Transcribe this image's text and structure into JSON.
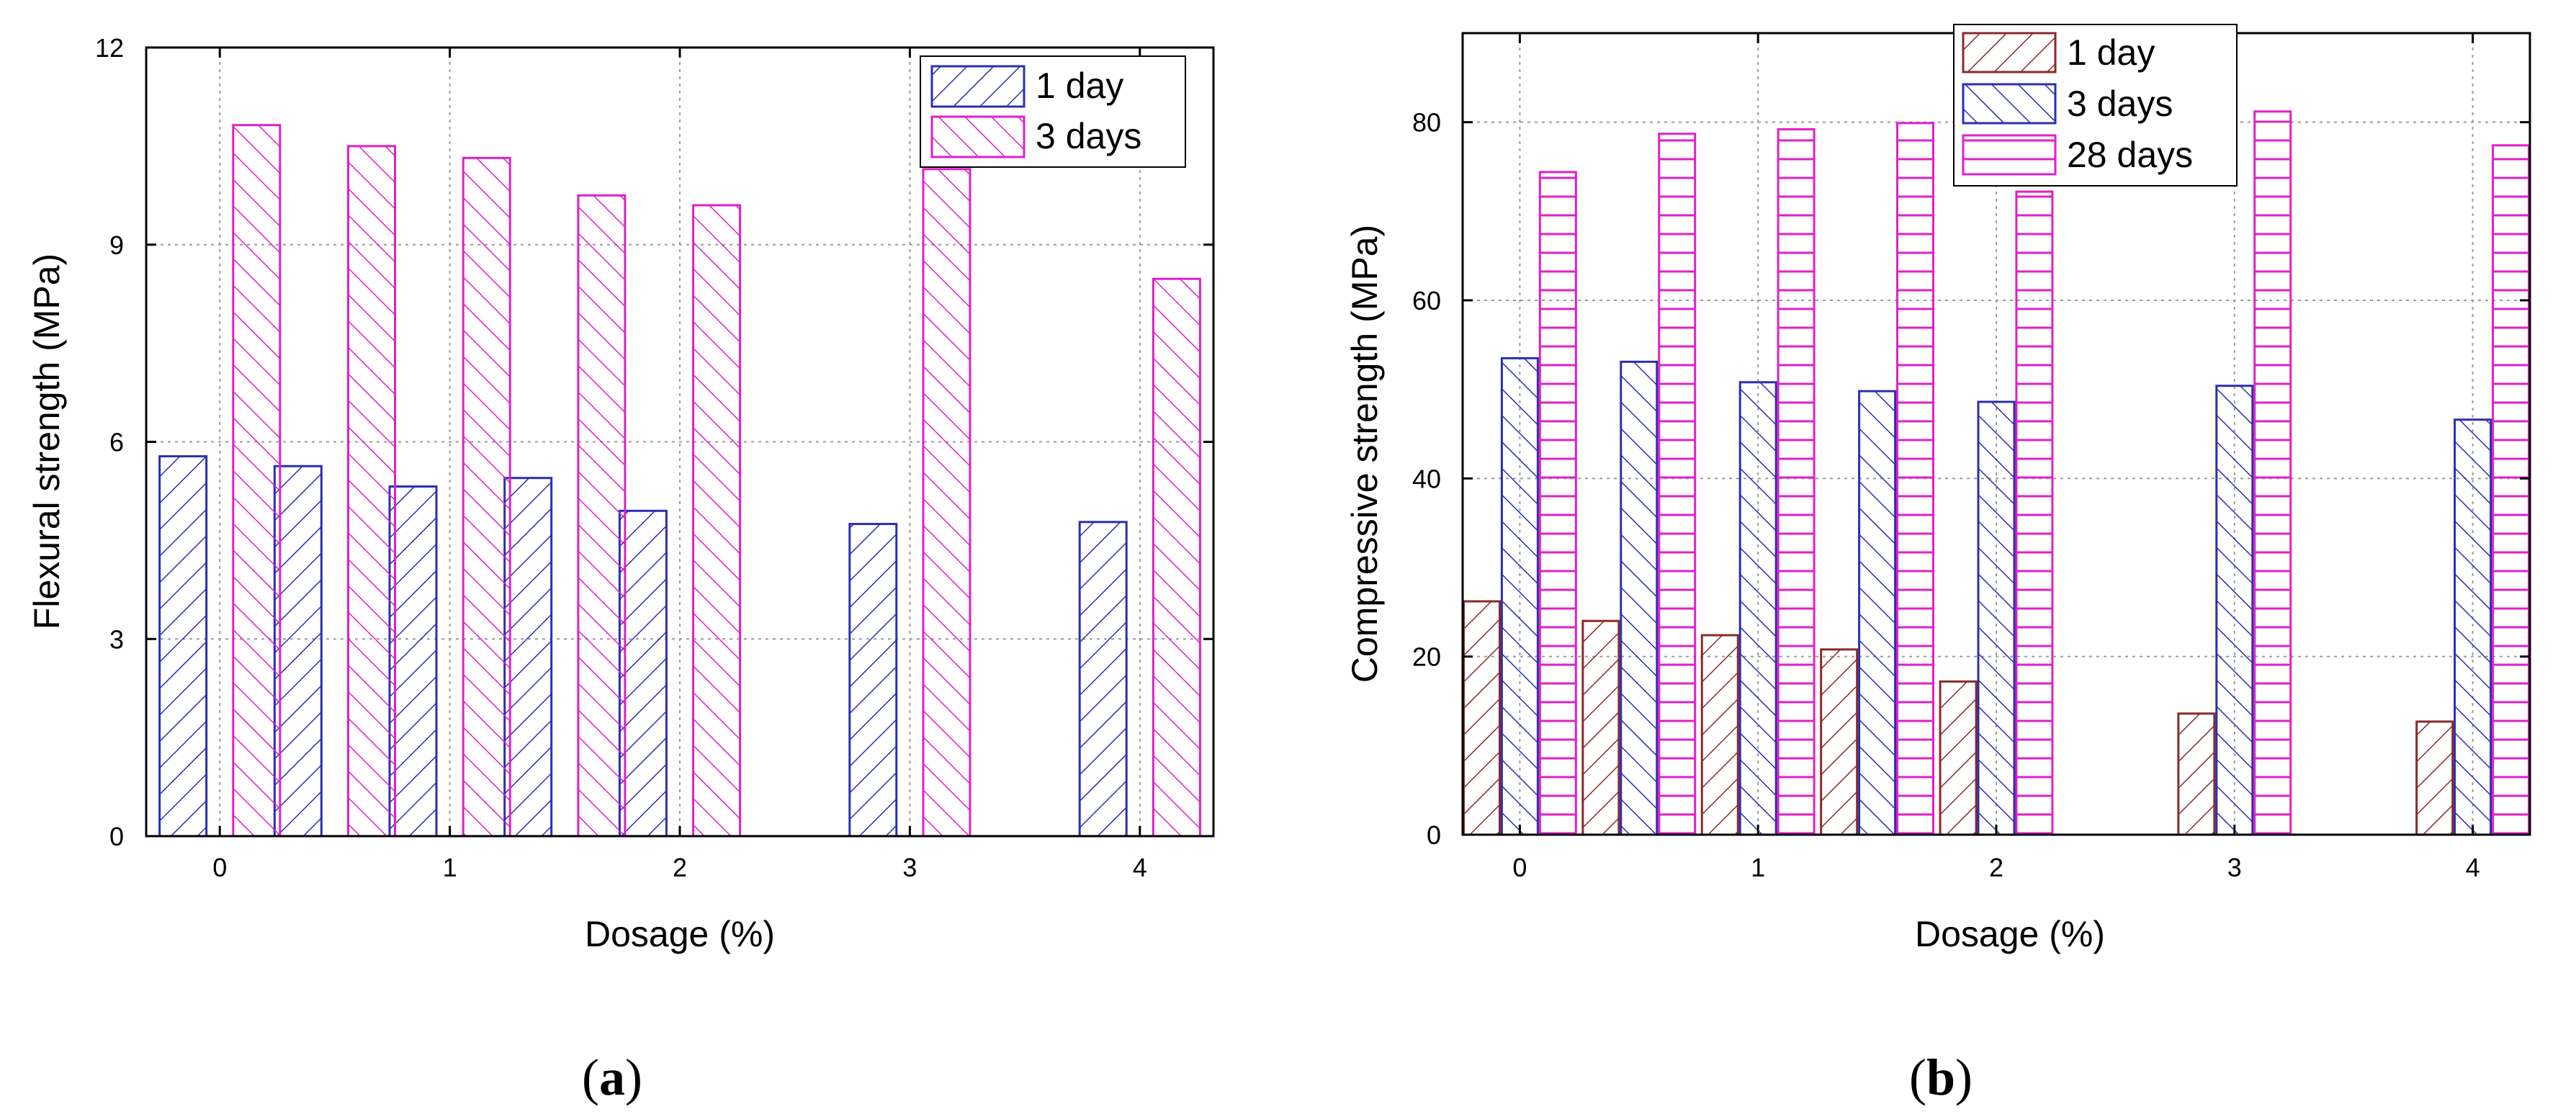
{
  "colors": {
    "one_day_a": "#2b2fb0",
    "three_days_a": "#e020c8",
    "one_day_b": "#8a2a2a",
    "three_days_b": "#2b2fb0",
    "twentyeight_days_b": "#e020c8",
    "grid": "#9a9a9a"
  },
  "chart_data": [
    {
      "type": "bar",
      "panel_label": {
        "open": "(",
        "letter": "a",
        "close": ")"
      },
      "xlabel": "Dosage (%)",
      "ylabel": "Flexural strength (MPa)",
      "ylim": [
        0,
        12
      ],
      "yticks": [
        "0",
        "3",
        "6",
        "9",
        "12"
      ],
      "xtick_labels": [
        "0",
        "1",
        "2",
        "3",
        "4"
      ],
      "xlim": [
        -0.32,
        4.32
      ],
      "categories": [
        0,
        0.5,
        1,
        1.5,
        2,
        3,
        4
      ],
      "legend_position": "top-right",
      "grid": true,
      "series": [
        {
          "name": "1 day",
          "pattern": "diag-up",
          "values": [
            5.78,
            5.63,
            5.32,
            5.45,
            4.95,
            4.75,
            4.78
          ]
        },
        {
          "name": "3 days",
          "pattern": "diag-down",
          "values": [
            10.82,
            10.5,
            10.32,
            9.75,
            9.6,
            10.15,
            8.48
          ]
        }
      ]
    },
    {
      "type": "bar",
      "panel_label": {
        "open": "(",
        "letter": "b",
        "close": ")"
      },
      "xlabel": "Dosage (%)",
      "ylabel": "Compressive strength (MPa)",
      "ylim": [
        0,
        90
      ],
      "yticks": [
        "0",
        "20",
        "40",
        "60",
        "80"
      ],
      "ytick_values": [
        0,
        20,
        40,
        60,
        80
      ],
      "xtick_labels": [
        "0",
        "1",
        "2",
        "3",
        "4"
      ],
      "xlim": [
        -0.24,
        4.24
      ],
      "categories": [
        0,
        0.5,
        1,
        1.5,
        2,
        3,
        4
      ],
      "legend_position": "top-center",
      "grid": true,
      "series": [
        {
          "name": "1 day",
          "pattern": "diag-up",
          "values": [
            26.2,
            24.0,
            22.4,
            20.8,
            17.2,
            13.6,
            12.7
          ]
        },
        {
          "name": "3 days",
          "pattern": "diag-down",
          "values": [
            53.5,
            53.1,
            50.8,
            49.8,
            48.6,
            50.4,
            46.6
          ]
        },
        {
          "name": "28 days",
          "pattern": "horizontal",
          "values": [
            74.4,
            78.7,
            79.2,
            79.9,
            72.2,
            81.2,
            77.4
          ]
        }
      ]
    }
  ]
}
